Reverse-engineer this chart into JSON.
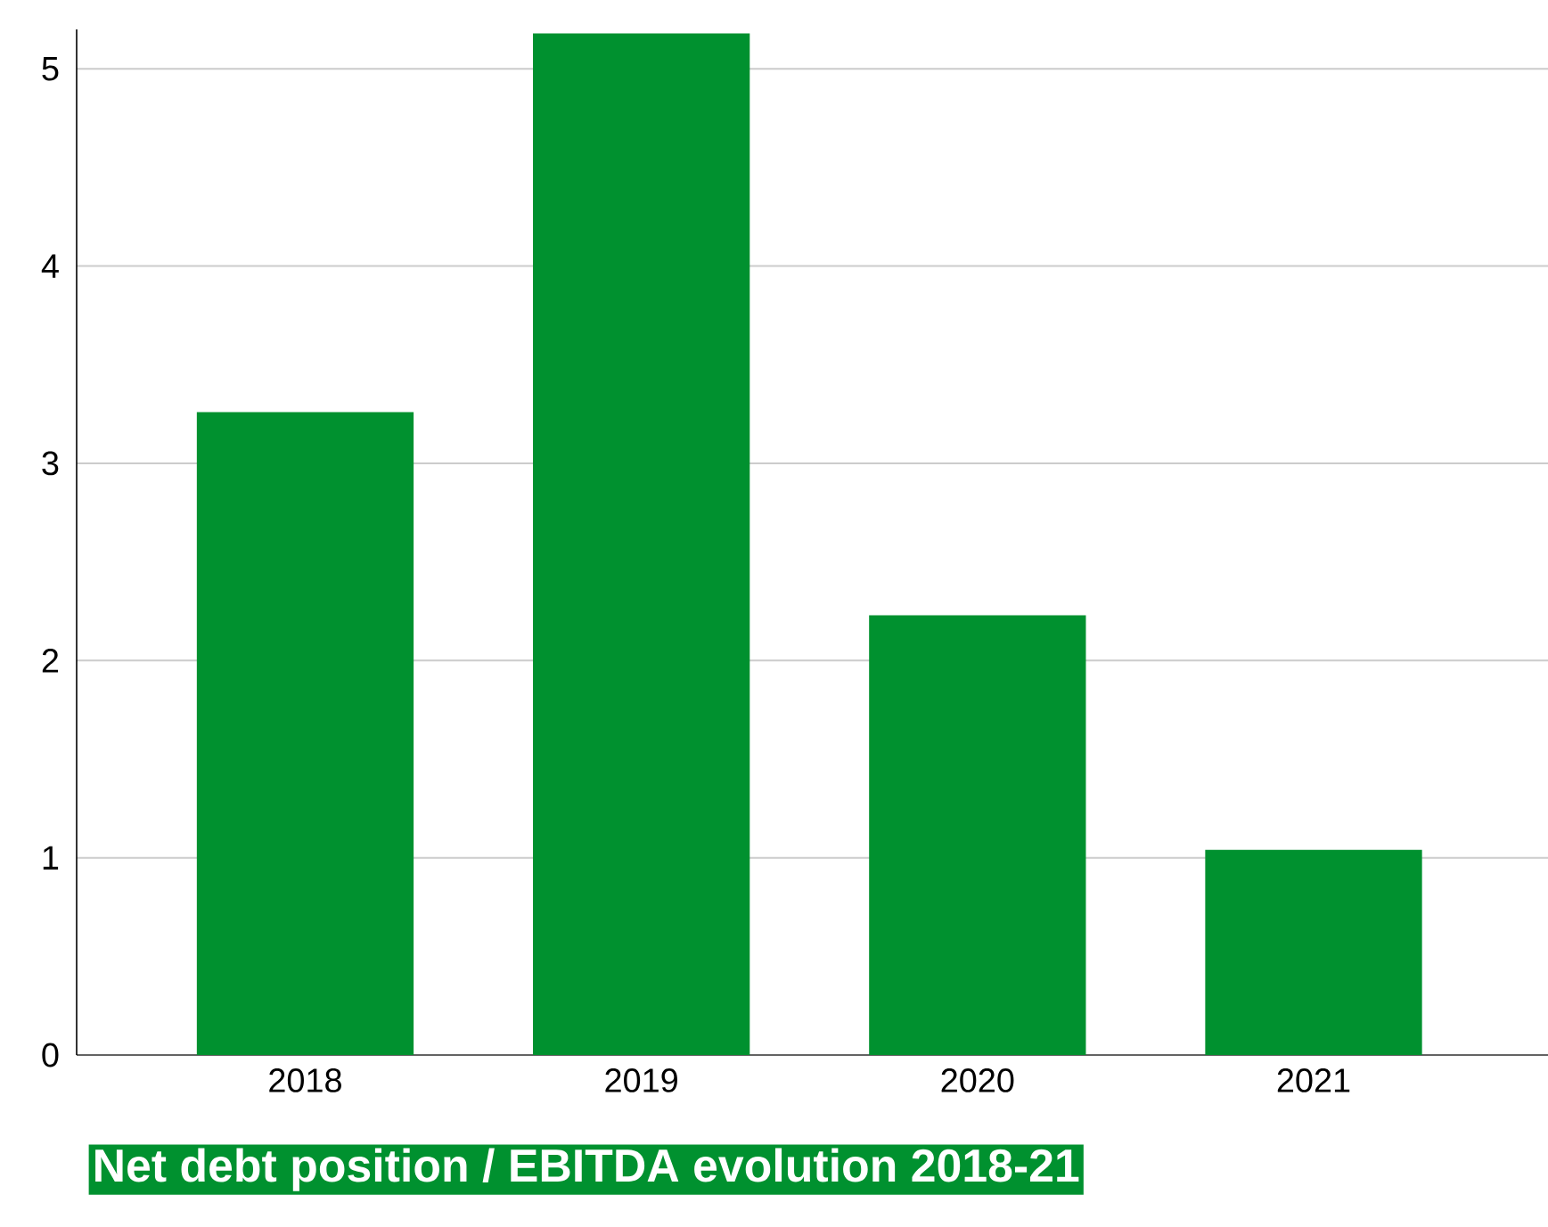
{
  "chart_data": {
    "type": "bar",
    "title": "Net debt position / EBITDA evolution 2018-21",
    "categories": [
      "2018",
      "2019",
      "2020",
      "2021"
    ],
    "values": [
      3.26,
      5.18,
      2.23,
      1.04
    ],
    "color": "#00912f",
    "ylim": [
      0,
      5.2
    ],
    "yticks": [
      0,
      1,
      2,
      3,
      4,
      5
    ],
    "grid": "y"
  }
}
